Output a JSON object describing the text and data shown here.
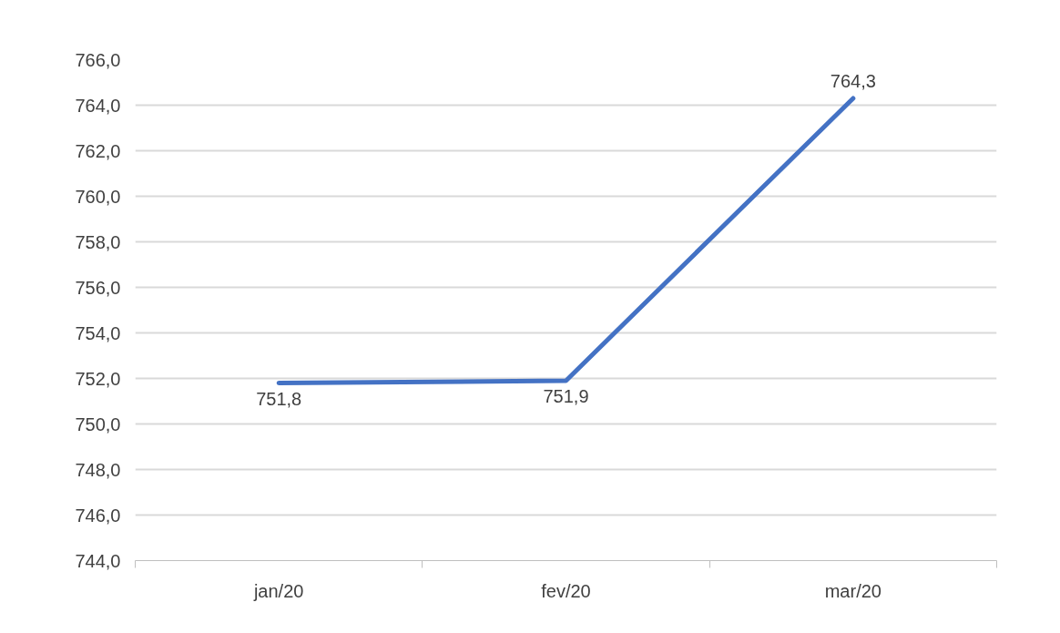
{
  "chart_data": {
    "type": "line",
    "categories": [
      "jan/20",
      "fev/20",
      "mar/20"
    ],
    "series": [
      {
        "color": "#4472c4",
        "values": [
          751.8,
          751.9,
          764.3
        ],
        "value_labels": [
          "751,8",
          "751,9",
          "764,3"
        ]
      }
    ],
    "ylim": [
      744,
      766
    ],
    "yticks": [
      {
        "value": 744,
        "label": "744,0"
      },
      {
        "value": 746,
        "label": "746,0"
      },
      {
        "value": 748,
        "label": "748,0"
      },
      {
        "value": 750,
        "label": "750,0"
      },
      {
        "value": 752,
        "label": "752,0"
      },
      {
        "value": 754,
        "label": "754,0"
      },
      {
        "value": 756,
        "label": "756,0"
      },
      {
        "value": 758,
        "label": "758,0"
      },
      {
        "value": 760,
        "label": "760,0"
      },
      {
        "value": 762,
        "label": "762,0"
      },
      {
        "value": 764,
        "label": "764,0"
      },
      {
        "value": 766,
        "label": "766,0"
      }
    ],
    "grid": "y",
    "marker": "none",
    "line_style": "solid"
  }
}
